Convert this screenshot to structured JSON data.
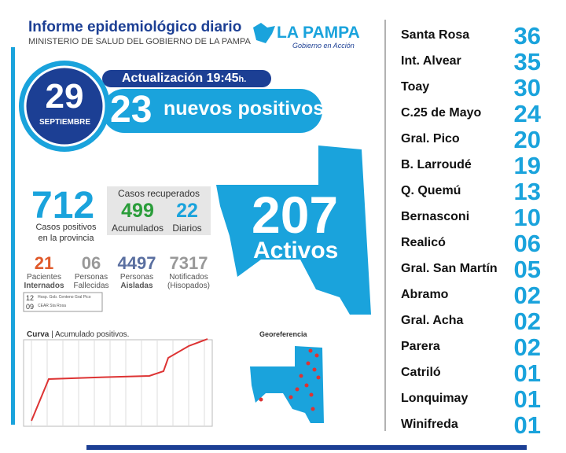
{
  "header": {
    "title": "Informe epidemiológico diario",
    "subtitle": "MINISTERIO DE SALUD DEL GOBIERNO DE LA PAMPA",
    "logo": "LA PAMPA",
    "logo_tagline": "Gobierno en Acción"
  },
  "date": {
    "day": "29",
    "month": "SEPTIEMBRE"
  },
  "update": {
    "label": "Actualización 19:45",
    "unit": "h."
  },
  "new_positives": {
    "number": "23",
    "label": "nuevos positivos"
  },
  "totals": {
    "positives": "712",
    "label_line1": "Casos positivos",
    "label_line2": "en la provincia"
  },
  "recovered": {
    "title": "Casos recuperados",
    "accumulated": "499",
    "accumulated_label": "Acumulados",
    "daily": "22",
    "daily_label": "Diarios"
  },
  "active": {
    "number": "207",
    "label": "Activos"
  },
  "stats": [
    {
      "value": "21",
      "line1": "Pacientes",
      "line2": "Internados"
    },
    {
      "value": "06",
      "line1": "Personas",
      "line2": "Fallecidas"
    },
    {
      "value": "4497",
      "line1": "Personas",
      "line2": "Aisladas"
    },
    {
      "value": "7317",
      "line1": "Notificados",
      "line2": "(Hisopados)"
    }
  ],
  "hospital_notes": [
    {
      "count": "12",
      "place": "Hosp. Gob. Centeno Gral Pico"
    },
    {
      "count": "09",
      "place": "CEAR Sta Rosa"
    }
  ],
  "curve": {
    "title": "Curva",
    "subtitle": "Acumulado positivos."
  },
  "geo": {
    "title": "Georeferencia"
  },
  "localities": [
    {
      "name": "Santa Rosa",
      "count": "36"
    },
    {
      "name": "Int. Alvear",
      "count": "35"
    },
    {
      "name": "Toay",
      "count": "30"
    },
    {
      "name": "C.25 de Mayo",
      "count": "24"
    },
    {
      "name": "Gral. Pico",
      "count": "20"
    },
    {
      "name": "B. Larroudé",
      "count": "19"
    },
    {
      "name": "Q. Quemú",
      "count": "13"
    },
    {
      "name": "Bernasconi",
      "count": "10"
    },
    {
      "name": "Realicó",
      "count": "06"
    },
    {
      "name": "Gral. San Martín",
      "count": "05"
    },
    {
      "name": "Abramo",
      "count": "02"
    },
    {
      "name": "Gral. Acha",
      "count": "02"
    },
    {
      "name": "Parera",
      "count": "02"
    },
    {
      "name": "Catriló",
      "count": "01"
    },
    {
      "name": "Lonquimay",
      "count": "01"
    },
    {
      "name": "Winifreda",
      "count": "01"
    }
  ]
}
